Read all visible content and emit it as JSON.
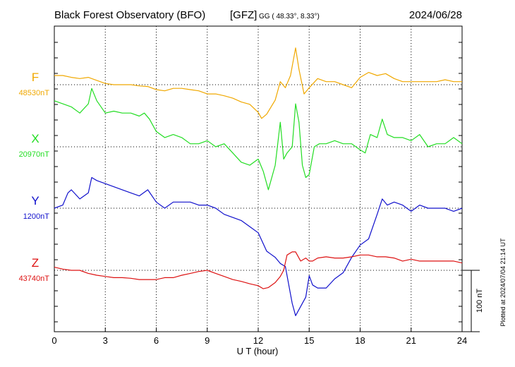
{
  "header": {
    "title": "Black Forest Observatory (BFO)",
    "source": "[GFZ]",
    "coords": "GG ( 48.33°,   8.33°)",
    "date": "2024/06/28"
  },
  "footer": {
    "plotted": "Plotted at 2024/07/04 21:14 UT",
    "scale_label": "100 nT"
  },
  "chart_data": {
    "type": "line",
    "xlabel": "U T (hour)",
    "xlim": [
      0,
      24
    ],
    "xticks": [
      0,
      3,
      6,
      9,
      12,
      15,
      18,
      21,
      24
    ],
    "grid": true,
    "scale_bar_nT": 100,
    "series": [
      {
        "name": "F",
        "baseline": "48530nT",
        "baseline_nT": 48530,
        "color": "#f0a800",
        "x": [
          0,
          0.5,
          1,
          1.5,
          2,
          2.5,
          3,
          3.5,
          4,
          4.5,
          5,
          5.5,
          6,
          6.5,
          7,
          7.5,
          8,
          8.5,
          9,
          9.5,
          10,
          10.5,
          11,
          11.5,
          12,
          12.2,
          12.5,
          13,
          13.3,
          13.6,
          13.9,
          14.2,
          14.4,
          14.7,
          15,
          15.5,
          16,
          16.5,
          17,
          17.5,
          18,
          18.5,
          19,
          19.5,
          20,
          20.5,
          21,
          21.5,
          22,
          22.5,
          23,
          23.5,
          24
        ],
        "y": [
          15,
          15,
          12,
          10,
          12,
          7,
          2,
          0,
          0,
          0,
          -2,
          -3,
          -8,
          -10,
          -6,
          -6,
          -8,
          -10,
          -15,
          -15,
          -18,
          -22,
          -28,
          -32,
          -45,
          -55,
          -48,
          -25,
          5,
          -5,
          15,
          60,
          25,
          -15,
          -5,
          10,
          5,
          5,
          0,
          -5,
          12,
          20,
          15,
          18,
          10,
          5,
          5,
          5,
          5,
          5,
          8,
          5,
          5
        ]
      },
      {
        "name": "X",
        "baseline": "20970nT",
        "baseline_nT": 20970,
        "color": "#22dd22",
        "x": [
          0,
          0.5,
          1,
          1.5,
          2,
          2.2,
          2.5,
          3,
          3.5,
          4,
          4.5,
          5,
          5.3,
          5.6,
          6,
          6.5,
          7,
          7.5,
          8,
          8.5,
          9,
          9.5,
          10,
          10.5,
          11,
          11.5,
          12,
          12.3,
          12.6,
          13,
          13.3,
          13.5,
          13.7,
          14,
          14.2,
          14.4,
          14.6,
          14.8,
          15,
          15.3,
          15.6,
          16,
          16.5,
          17,
          17.5,
          18,
          18.3,
          18.6,
          19,
          19.3,
          19.6,
          20,
          20.5,
          21,
          21.5,
          22,
          22.5,
          23,
          23.5,
          24
        ],
        "y": [
          75,
          70,
          65,
          55,
          70,
          95,
          75,
          55,
          58,
          55,
          55,
          50,
          55,
          45,
          25,
          15,
          20,
          15,
          5,
          5,
          10,
          0,
          5,
          -10,
          -25,
          -30,
          -20,
          -40,
          -70,
          -30,
          40,
          -20,
          -10,
          0,
          70,
          40,
          -30,
          -50,
          -45,
          0,
          5,
          5,
          10,
          5,
          5,
          -5,
          -10,
          20,
          15,
          45,
          20,
          15,
          15,
          10,
          20,
          0,
          5,
          5,
          15,
          5
        ]
      },
      {
        "name": "Y",
        "baseline": "1200nT",
        "baseline_nT": 1200,
        "color": "#1010cc",
        "x": [
          0,
          0.5,
          0.8,
          1,
          1.5,
          2,
          2.2,
          2.5,
          3,
          3.5,
          4,
          4.5,
          5,
          5.5,
          6,
          6.5,
          7,
          7.5,
          8,
          8.5,
          9,
          9.5,
          10,
          10.5,
          11,
          11.5,
          12,
          12.5,
          13,
          13.3,
          13.6,
          14,
          14.2,
          14.5,
          14.8,
          15,
          15.2,
          15.5,
          16,
          16.5,
          17,
          17.5,
          18,
          18.5,
          19,
          19.3,
          19.6,
          20,
          20.5,
          21,
          21.5,
          22,
          22.5,
          23,
          23.5,
          24
        ],
        "y": [
          0,
          5,
          25,
          30,
          15,
          25,
          50,
          45,
          40,
          35,
          30,
          25,
          20,
          30,
          10,
          0,
          10,
          10,
          10,
          5,
          5,
          0,
          -10,
          -15,
          -20,
          -30,
          -40,
          -70,
          -80,
          -90,
          -95,
          -155,
          -175,
          -160,
          -145,
          -110,
          -125,
          -130,
          -130,
          -115,
          -105,
          -80,
          -60,
          -50,
          -10,
          15,
          5,
          10,
          5,
          -5,
          5,
          0,
          0,
          0,
          -5,
          0
        ]
      },
      {
        "name": "Z",
        "baseline": "43740nT",
        "baseline_nT": 43740,
        "color": "#dd1111",
        "x": [
          0,
          0.5,
          1,
          1.5,
          2,
          2.5,
          3,
          3.5,
          4,
          4.5,
          5,
          5.5,
          6,
          6.5,
          7,
          7.5,
          8,
          8.5,
          9,
          9.5,
          10,
          10.5,
          11,
          11.5,
          12,
          12.3,
          12.6,
          13,
          13.3,
          13.5,
          13.7,
          14,
          14.2,
          14.5,
          14.8,
          15,
          15.2,
          15.5,
          16,
          16.5,
          17,
          17.5,
          18,
          18.5,
          19,
          19.5,
          20,
          20.5,
          21,
          21.5,
          22,
          22.5,
          23,
          23.5,
          24
        ],
        "y": [
          5,
          2,
          0,
          0,
          -5,
          -8,
          -10,
          -12,
          -12,
          -13,
          -15,
          -15,
          -15,
          -12,
          -12,
          -8,
          -5,
          -2,
          0,
          -5,
          -10,
          -15,
          -18,
          -22,
          -25,
          -30,
          -28,
          -20,
          -10,
          0,
          25,
          30,
          30,
          15,
          20,
          15,
          15,
          20,
          22,
          20,
          20,
          22,
          25,
          25,
          22,
          22,
          20,
          15,
          18,
          15,
          15,
          15,
          15,
          15,
          12
        ]
      }
    ]
  }
}
